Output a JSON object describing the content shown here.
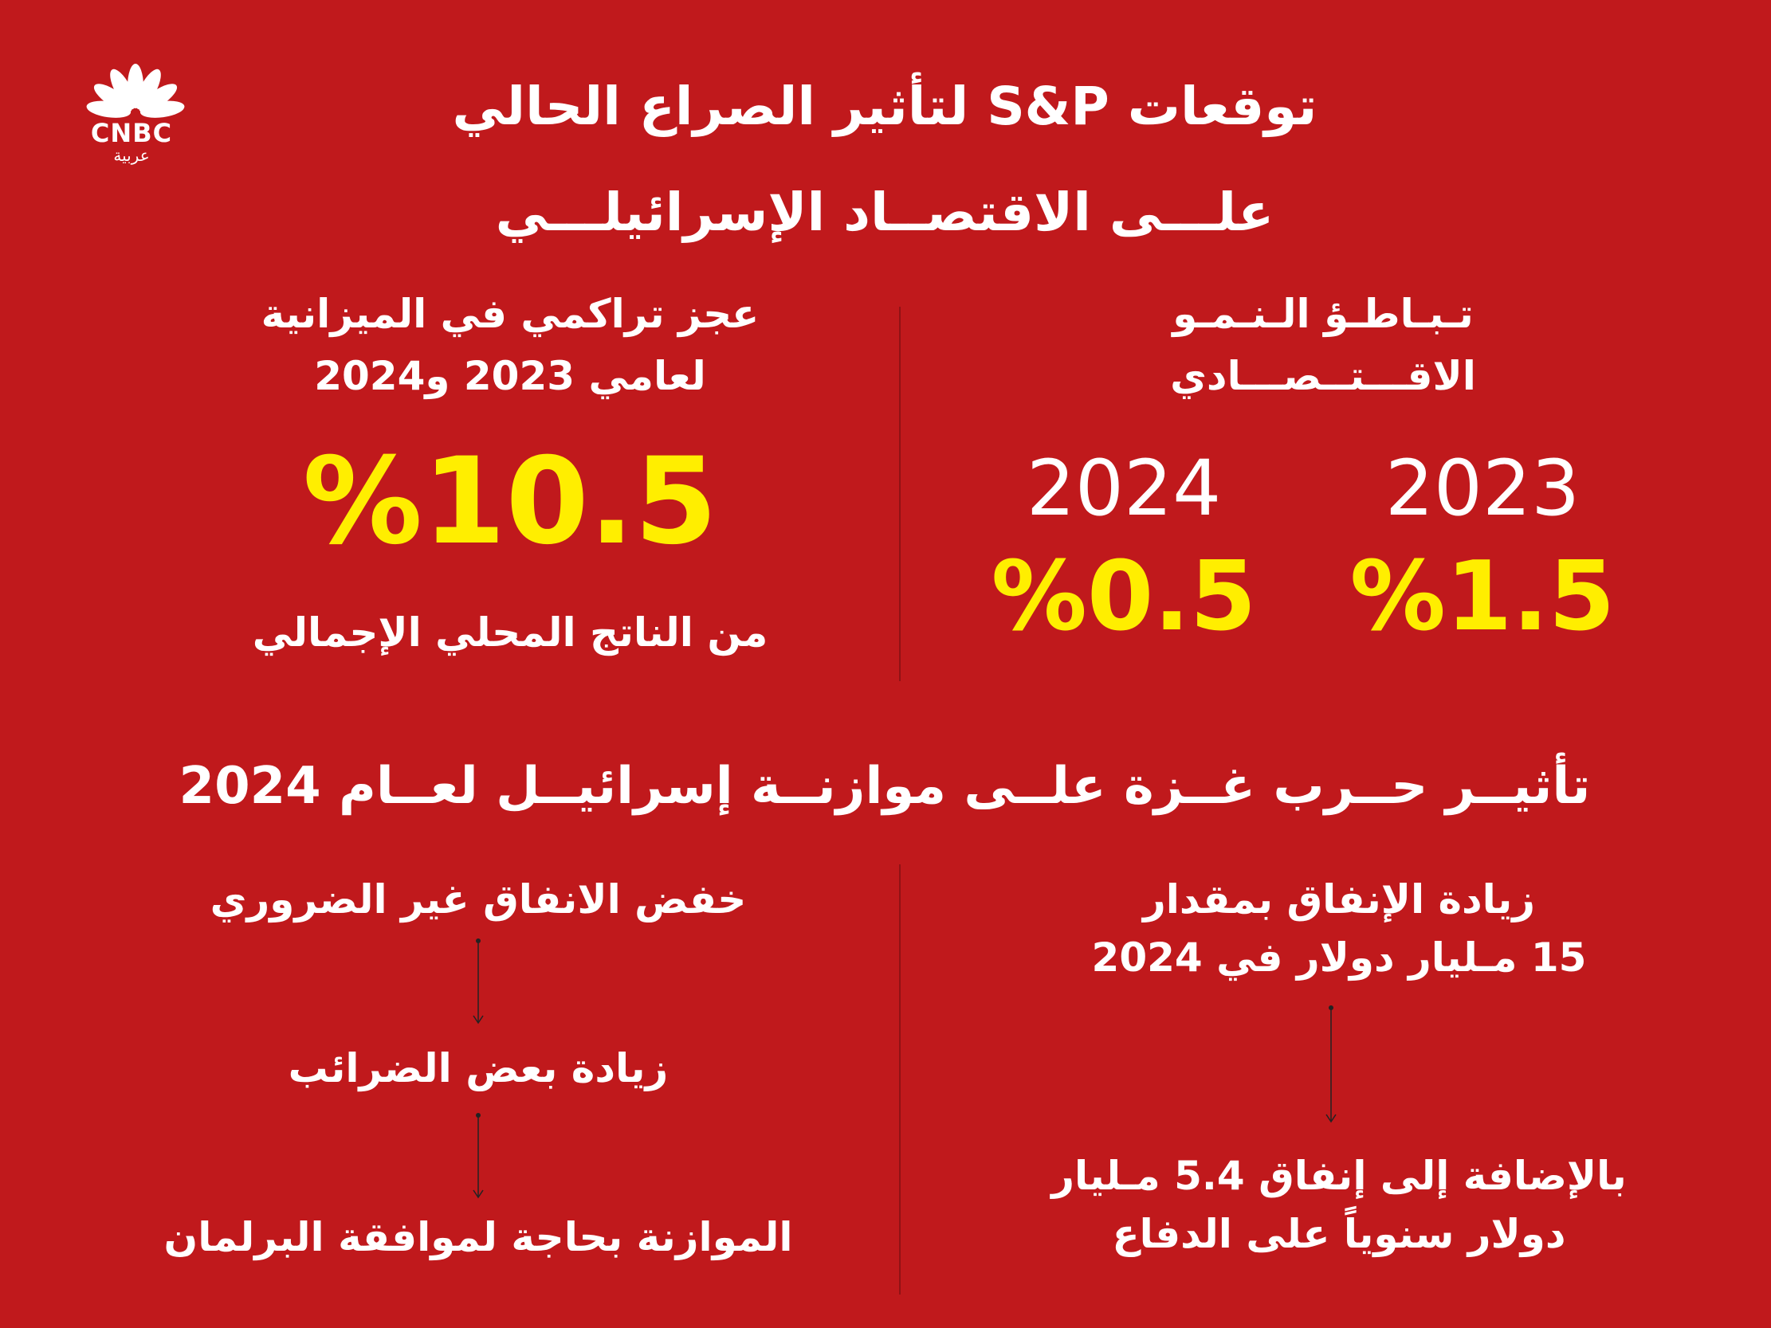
{
  "logo": {
    "wordmark": "CNBC",
    "subtitle": "عربية",
    "icon": "peacock-icon"
  },
  "title": {
    "line1": "توقعات S&P لتأثير الصراع الحالي",
    "line2": "علـــى الاقتصــاد الإسرائيلـــي"
  },
  "deficit": {
    "heading_line1": "عجز تراكمي في الميزانية",
    "heading_line2": "لعامي 2023 و2024",
    "value": "%10.5",
    "caption": "من الناتج المحلي الإجمالي"
  },
  "growth": {
    "heading_line1": "تـبـاطـؤ الـنـمـو",
    "heading_line2": "الاقـــتــصـــادي",
    "years": [
      {
        "year": "2023",
        "value": "%1.5"
      },
      {
        "year": "2024",
        "value": "%0.5"
      }
    ]
  },
  "section2": {
    "title": "تأثيــر حــرب غــزة علــى موازنــة إسرائيــل لعــام 2024"
  },
  "spending_cut": {
    "step1": "خفض الانفاق غير الضروري",
    "step2": "زيادة بعض الضرائب",
    "step3": "الموازنة بحاجة لموافقة البرلمان"
  },
  "spending_increase": {
    "line1": "زيادة الإنفاق بمقدار",
    "line2": "15 مـليار دولار في 2024",
    "line3": "بالإضافة إلى إنفاق 5.4 مـليار",
    "line4": "دولار سنوياً على الدفاع"
  },
  "colors": {
    "background": "#c0191c",
    "accent": "#ffee00",
    "text": "#ffffff"
  }
}
